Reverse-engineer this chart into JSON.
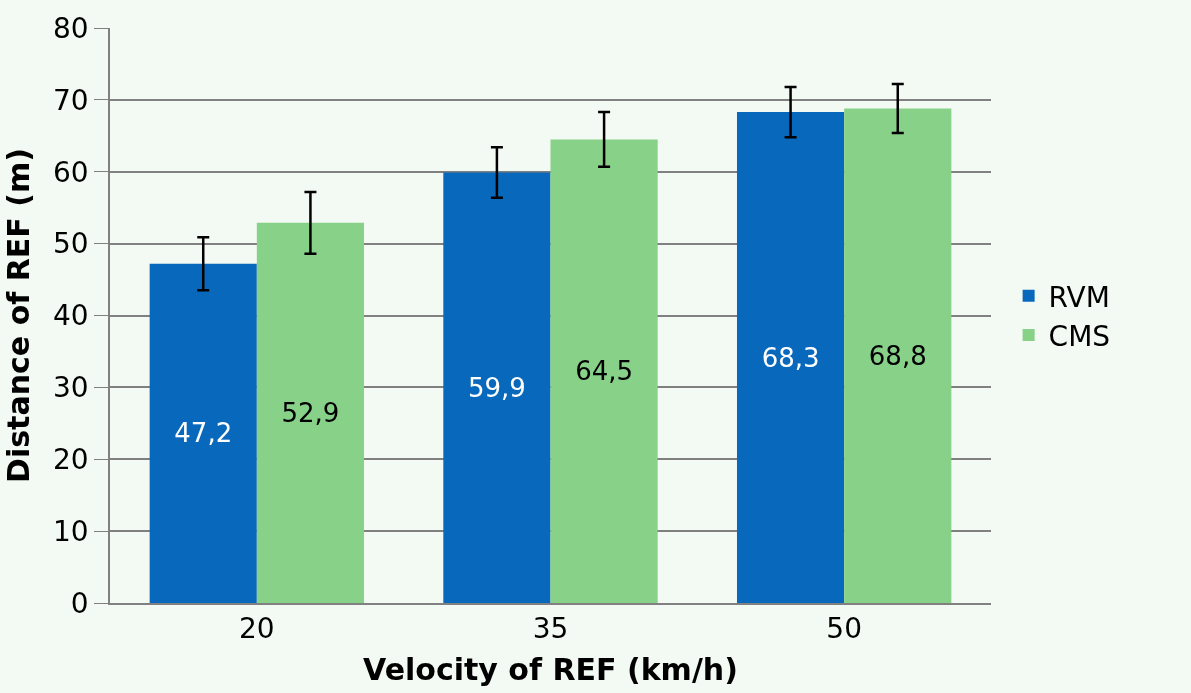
{
  "chart_data": {
    "type": "bar",
    "xlabel": "Velocity of REF (km/h)",
    "ylabel": "Distance of REF (m)",
    "categories": [
      "20",
      "35",
      "50"
    ],
    "series": [
      {
        "name": "RVM",
        "color": "#0868bb",
        "values": [
          47.2,
          59.9,
          68.3
        ],
        "value_labels": [
          "47,2",
          "59,9",
          "68,3"
        ],
        "errors": [
          3.7,
          3.5,
          3.5
        ]
      },
      {
        "name": "CMS",
        "color": "#88d188",
        "values": [
          52.9,
          64.5,
          68.8
        ],
        "value_labels": [
          "52,9",
          "64,5",
          "68,8"
        ],
        "errors": [
          4.3,
          3.8,
          3.4
        ]
      }
    ],
    "ylim": [
      0,
      80
    ],
    "yticks": [
      0,
      10,
      20,
      30,
      40,
      50,
      60,
      70,
      80
    ],
    "grid": "y",
    "legend": "right"
  }
}
